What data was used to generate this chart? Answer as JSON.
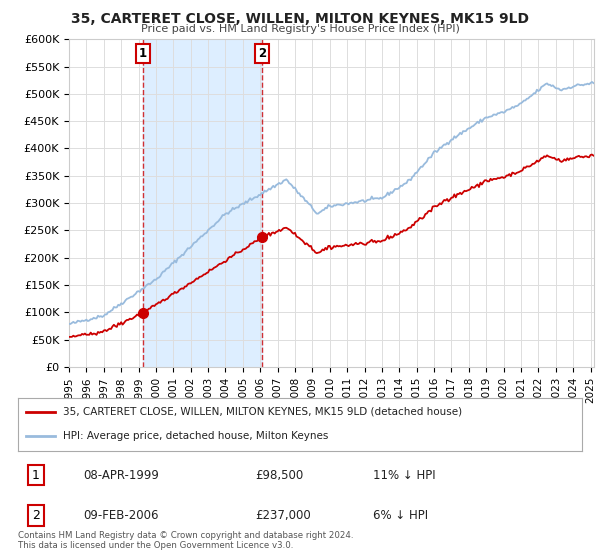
{
  "title": "35, CARTERET CLOSE, WILLEN, MILTON KEYNES, MK15 9LD",
  "subtitle": "Price paid vs. HM Land Registry's House Price Index (HPI)",
  "legend_label_red": "35, CARTERET CLOSE, WILLEN, MILTON KEYNES, MK15 9LD (detached house)",
  "legend_label_blue": "HPI: Average price, detached house, Milton Keynes",
  "transaction1_date": "08-APR-1999",
  "transaction1_price": "£98,500",
  "transaction1_hpi": "11% ↓ HPI",
  "transaction2_date": "09-FEB-2006",
  "transaction2_price": "£237,000",
  "transaction2_hpi": "6% ↓ HPI",
  "footer": "Contains HM Land Registry data © Crown copyright and database right 2024.\nThis data is licensed under the Open Government Licence v3.0.",
  "ylabel_ticks": [
    "£0",
    "£50K",
    "£100K",
    "£150K",
    "£200K",
    "£250K",
    "£300K",
    "£350K",
    "£400K",
    "£450K",
    "£500K",
    "£550K",
    "£600K"
  ],
  "ytick_values": [
    0,
    50000,
    100000,
    150000,
    200000,
    250000,
    300000,
    350000,
    400000,
    450000,
    500000,
    550000,
    600000
  ],
  "background_color": "#ffffff",
  "plot_bg_color": "#ffffff",
  "grid_color": "#dddddd",
  "red_color": "#cc0000",
  "blue_color": "#99bbdd",
  "shade_color": "#ddeeff",
  "transaction1_year": 1999.27,
  "transaction1_value": 98500,
  "transaction2_year": 2006.1,
  "transaction2_value": 237000,
  "xmin": 1995.0,
  "xmax": 2025.2,
  "ymin": 0,
  "ymax": 600000
}
